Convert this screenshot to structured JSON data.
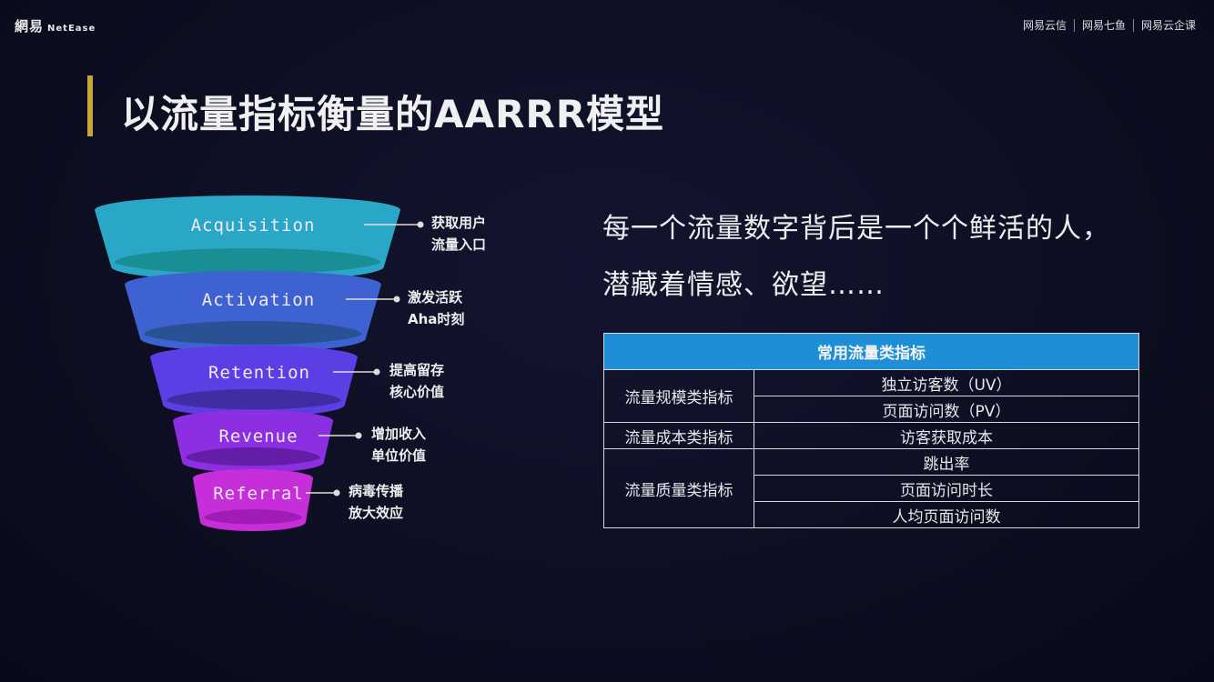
{
  "header": {
    "logo_cn": "網易",
    "logo_en": "NetEase",
    "brands": [
      "网易云信",
      "网易七鱼",
      "网易云企课"
    ]
  },
  "title": "以流量指标衡量的AARRR模型",
  "funnel": [
    {
      "label": "Acquisition",
      "note1": "获取用户",
      "note2": "流量入口",
      "color": "#2aa6c6",
      "shade": "#178a8c"
    },
    {
      "label": "Activation",
      "note1": "激发活跃",
      "note2": "Aha时刻",
      "color": "#3e62d2",
      "shade": "#25508a"
    },
    {
      "label": "Retention",
      "note1": "提高留存",
      "note2": "核心价值",
      "color": "#5b3ee4",
      "shade": "#3a2a98"
    },
    {
      "label": "Revenue",
      "note1": "增加收入",
      "note2": "单位价值",
      "color": "#8c2ee2",
      "shade": "#5c1a9c"
    },
    {
      "label": "Referral",
      "note1": "病毒传播",
      "note2": "放大效应",
      "color": "#c52ed8",
      "shade": "#9a18b0"
    }
  ],
  "quote": {
    "line1": "每一个流量数字背后是一个个鲜活的人，",
    "line2": "潜藏着情感、欲望……"
  },
  "table": {
    "header": "常用流量类指标",
    "groups": [
      {
        "category": "流量规模类指标",
        "items": [
          "独立访客数（UV）",
          "页面访问数（PV）"
        ]
      },
      {
        "category": "流量成本类指标",
        "items": [
          "访客获取成本"
        ]
      },
      {
        "category": "流量质量类指标",
        "items": [
          "跳出率",
          "页面访问时长",
          "人均页面访问数"
        ]
      }
    ]
  }
}
